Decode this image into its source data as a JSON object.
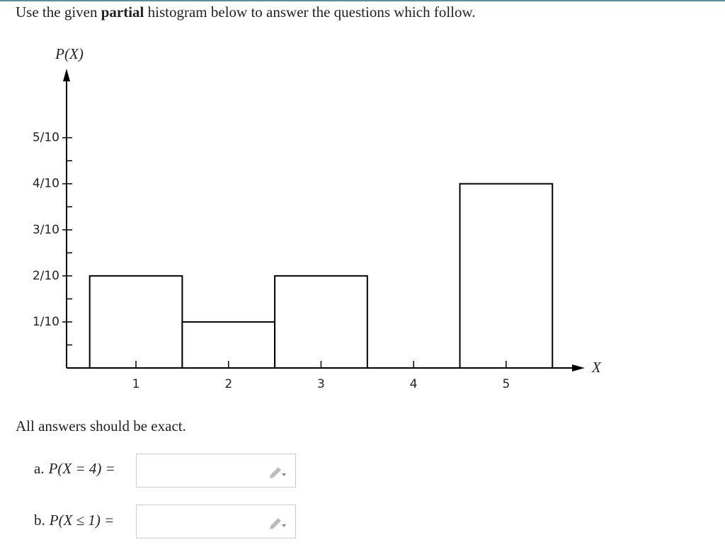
{
  "header": {
    "prefix": "Use the given",
    "bold": "partial",
    "suffix": "histogram below to answer the questions which follow."
  },
  "chart_data": {
    "type": "histogram",
    "x_label": "X",
    "y_label": "P(X)",
    "x": [
      1,
      2,
      3,
      4,
      5
    ],
    "values": [
      0.2,
      0.1,
      0.2,
      null,
      0.4
    ],
    "color": "#ffffff",
    "edge_color": "#000000",
    "xlim": [
      0.25,
      5.85
    ],
    "xticks": [
      1,
      2,
      3,
      4,
      5
    ],
    "ylim": [
      0,
      0.65
    ],
    "yticks": [
      {
        "value": 0.1,
        "label": "1/10"
      },
      {
        "value": 0.2,
        "label": "2/10"
      },
      {
        "value": 0.3,
        "label": "3/10"
      },
      {
        "value": 0.4,
        "label": "4/10"
      },
      {
        "value": 0.5,
        "label": "5/10"
      }
    ],
    "minor_yticks": [
      0.05,
      0.15,
      0.25,
      0.35,
      0.45
    ]
  },
  "note": "All answers should be exact.",
  "questions": [
    {
      "letter": "a.",
      "expr": "P(X = 4) ="
    },
    {
      "letter": "b.",
      "expr": "P(X ≤ 1) ="
    }
  ]
}
